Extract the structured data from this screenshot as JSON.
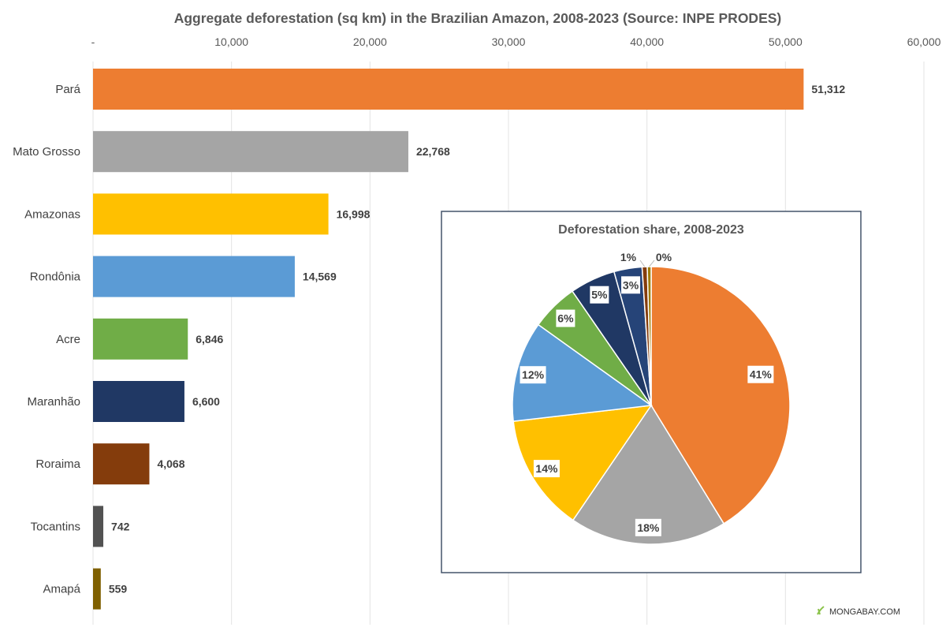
{
  "chart_data": [
    {
      "type": "bar",
      "orientation": "horizontal",
      "title": "Aggregate deforestation (sq km) in the Brazilian Amazon, 2008-2023 (Source: INPE PRODES)",
      "categories": [
        "Pará",
        "Mato Grosso",
        "Amazonas",
        "Rondônia",
        "Acre",
        "Maranhão",
        "Roraima",
        "Tocantins",
        "Amapá"
      ],
      "values": [
        51312,
        22768,
        16998,
        14569,
        6846,
        6600,
        4068,
        742,
        559
      ],
      "data_labels": [
        "51,312",
        "22,768",
        "16,998",
        "14,569",
        "6,846",
        "6,600",
        "4,068",
        "742",
        "559"
      ],
      "colors": [
        "#ED7D31",
        "#A5A5A5",
        "#FFC000",
        "#5B9BD5",
        "#70AD47",
        "#203864",
        "#843C0C",
        "#525252",
        "#7F6000"
      ],
      "xlim": [
        0,
        60000
      ],
      "x_ticks": [
        0,
        10000,
        20000,
        30000,
        40000,
        50000,
        60000
      ],
      "x_tick_labels": [
        "-",
        "10,000",
        "20,000",
        "30,000",
        "40,000",
        "50,000",
        "60,000"
      ],
      "x_axis_position": "top",
      "grid": true
    },
    {
      "type": "pie",
      "title": "Deforestation share, 2008-2023",
      "values": [
        51312,
        22768,
        16998,
        14569,
        6846,
        6600,
        4068,
        742,
        559
      ],
      "labels": [
        "41%",
        "18%",
        "14%",
        "12%",
        "6%",
        "5%",
        "3%",
        "1%",
        "0%"
      ],
      "colors": [
        "#ED7D31",
        "#A5A5A5",
        "#FFC000",
        "#5B9BD5",
        "#70AD47",
        "#203864",
        "#264478",
        "#843C0C",
        "#9E7A00"
      ]
    }
  ],
  "watermark": "MONGABAY.COM"
}
